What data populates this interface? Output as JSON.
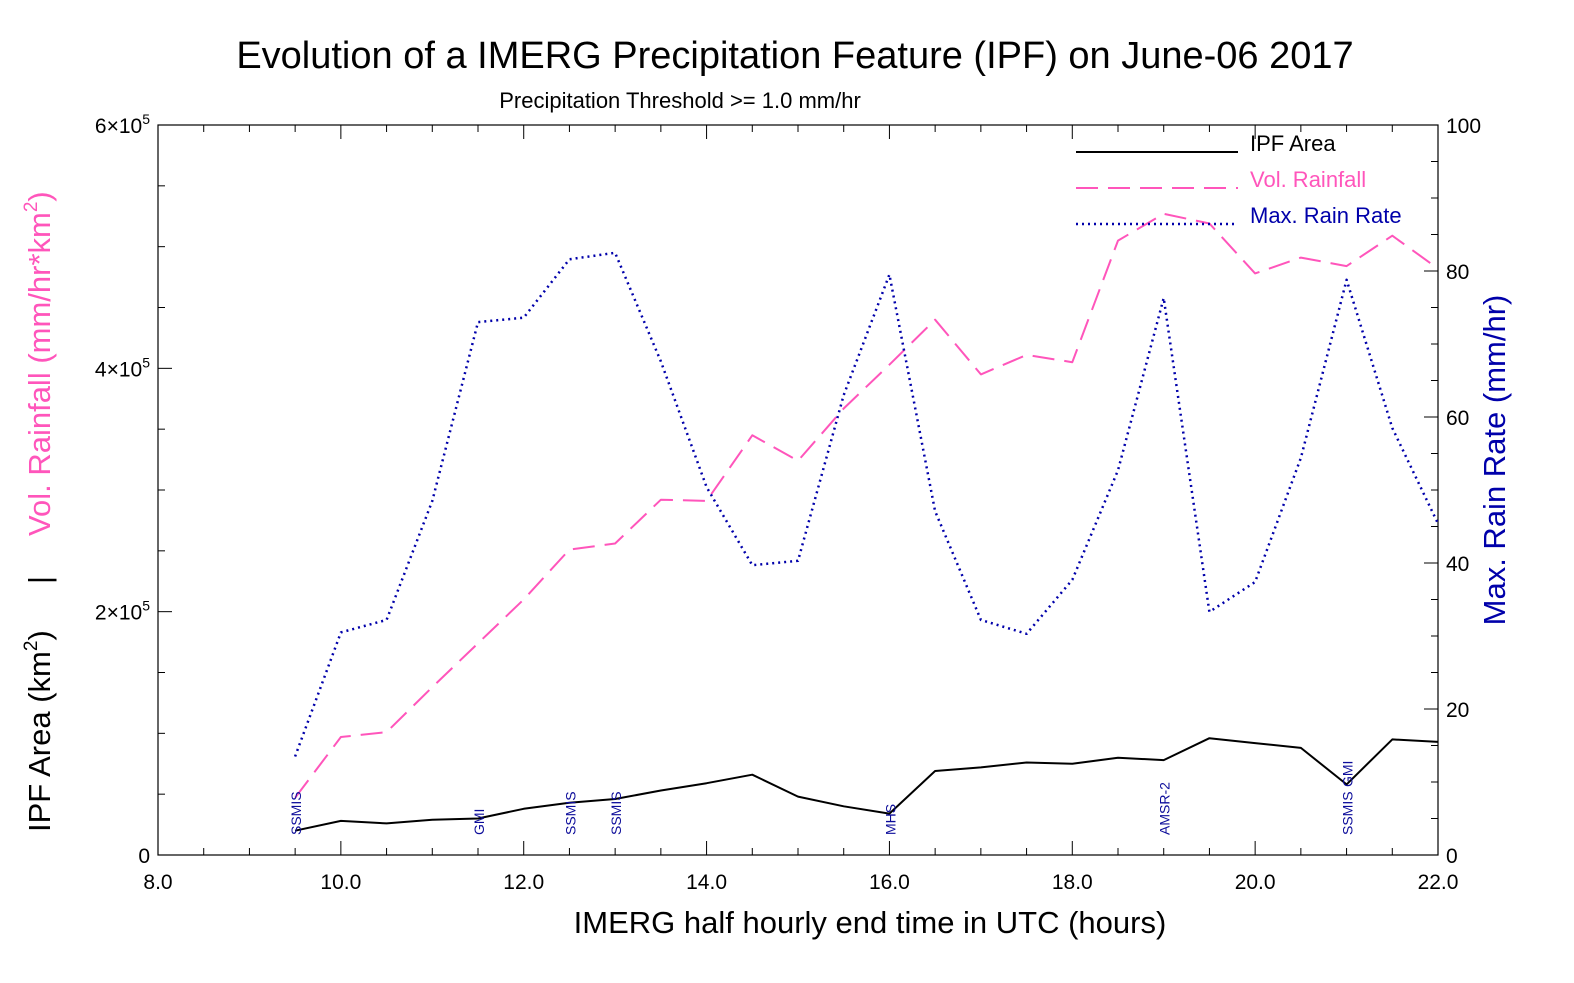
{
  "colors": {
    "area": "#000000",
    "rainfall": "#ff55bb",
    "max_rate": "#0000aa",
    "sensor": "#0c0c9a"
  },
  "chart_data": {
    "type": "line",
    "title": "Evolution of a IMERG Precipitation Feature (IPF) on June-06 2017",
    "subtitle": "Precipitation Threshold >= 1.0 mm/hr",
    "xlabel": "IMERG half hourly end time in UTC (hours)",
    "ylabel_left_top": "Vol. Rainfall (mm/hr*km",
    "ylabel_left_bottom": "IPF Area (km",
    "ylabel_left_sup": "2",
    "ylabel_left_separator": "|",
    "ylabel_left_close": ")",
    "ylabel_right": "Max. Rain Rate (mm/hr)",
    "xlim": [
      8.0,
      22.0
    ],
    "ylim_left": [
      0,
      600000
    ],
    "ylim_right": [
      0,
      100
    ],
    "x_ticks": [
      "8.0",
      "10.0",
      "12.0",
      "14.0",
      "16.0",
      "18.0",
      "20.0",
      "22.0"
    ],
    "y_left_ticks": [
      {
        "mantissa": "0",
        "exp": ""
      },
      {
        "mantissa": "2×10",
        "exp": "5"
      },
      {
        "mantissa": "4×10",
        "exp": "5"
      },
      {
        "mantissa": "6×10",
        "exp": "5"
      }
    ],
    "y_right_ticks": [
      "0",
      "20",
      "40",
      "60",
      "80",
      "100"
    ],
    "grid": false,
    "legend_position": "top-right",
    "x": [
      9.5,
      10.0,
      10.5,
      11.0,
      11.5,
      12.0,
      12.5,
      13.0,
      13.5,
      14.0,
      14.5,
      15.0,
      15.5,
      16.0,
      16.5,
      17.0,
      17.5,
      18.0,
      18.5,
      19.0,
      19.5,
      20.0,
      20.5,
      21.0,
      21.5,
      22.0
    ],
    "series": [
      {
        "name": "IPF Area",
        "axis": "left",
        "style": "solid",
        "values": [
          20000,
          28000,
          26000,
          29000,
          30000,
          38000,
          43000,
          46000,
          53000,
          59000,
          66000,
          48000,
          40000,
          34000,
          69000,
          72000,
          76000,
          75000,
          80000,
          78000,
          96000,
          92000,
          88000,
          58000,
          95000,
          93000
        ]
      },
      {
        "name": "Vol. Rainfall",
        "axis": "left",
        "style": "dashed",
        "values": [
          47000,
          97000,
          101000,
          138000,
          174000,
          210000,
          251000,
          256000,
          292000,
          291000,
          345000,
          324000,
          367000,
          403000,
          440000,
          395000,
          411000,
          405000,
          505000,
          527000,
          519000,
          478000,
          491000,
          484000,
          509000,
          482000
        ]
      },
      {
        "name": "Max. Rain Rate",
        "axis": "right",
        "style": "dotted",
        "values": [
          13.5,
          30.5,
          32.2,
          48.5,
          73.0,
          73.6,
          81.6,
          82.5,
          67.6,
          50.4,
          39.7,
          40.3,
          63.0,
          79.5,
          47.1,
          32.2,
          30.3,
          37.7,
          52.7,
          76.3,
          33.3,
          37.4,
          54.4,
          78.8,
          58.5,
          45.4
        ]
      }
    ],
    "sensor_overpasses": [
      {
        "x": 9.5,
        "label": "SSMIS"
      },
      {
        "x": 11.5,
        "label": "GMI"
      },
      {
        "x": 12.5,
        "label": "SSMIS"
      },
      {
        "x": 13.0,
        "label": "SSMIS"
      },
      {
        "x": 16.0,
        "label": "MHS"
      },
      {
        "x": 19.0,
        "label": "AMSR-2"
      },
      {
        "x": 21.0,
        "label": "SSMIS"
      },
      {
        "x": 21.0,
        "label": "GMI"
      }
    ]
  }
}
